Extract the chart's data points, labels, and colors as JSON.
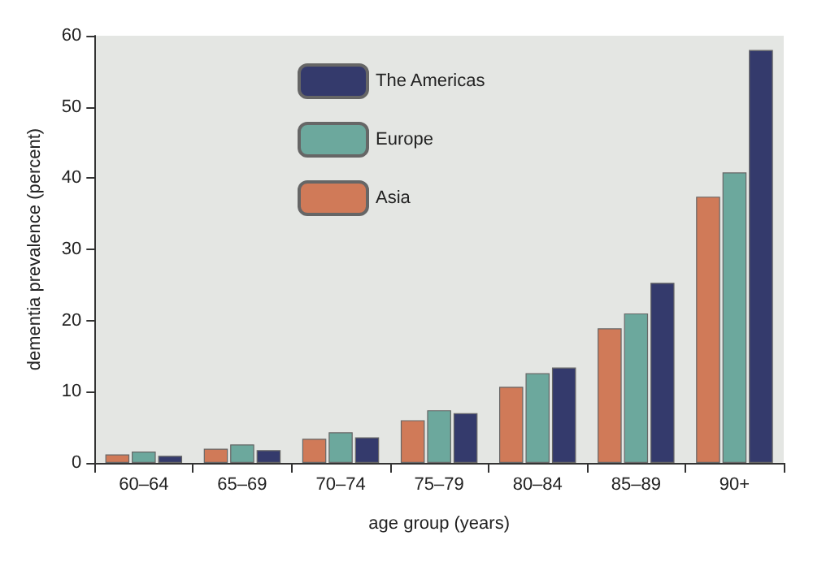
{
  "chart_data": {
    "type": "bar",
    "xlabel": "age group (years)",
    "ylabel": "dementia prevalence (percent)",
    "categories": [
      "60–64",
      "65–69",
      "70–74",
      "75–79",
      "80–84",
      "85–89",
      "90+"
    ],
    "series": [
      {
        "name": "Asia",
        "color": "#d07a58",
        "values": [
          1.2,
          2.0,
          3.4,
          6.0,
          10.7,
          18.9,
          37.4
        ]
      },
      {
        "name": "Europe",
        "color": "#6ca89d",
        "values": [
          1.6,
          2.6,
          4.3,
          7.4,
          12.6,
          21.0,
          40.8
        ]
      },
      {
        "name": "The Americas",
        "color": "#343a6c",
        "values": [
          1.0,
          1.8,
          3.6,
          7.0,
          13.4,
          25.3,
          58.0
        ]
      }
    ],
    "ylim": [
      0,
      60
    ],
    "yticks": [
      0,
      10,
      20,
      30,
      40,
      50,
      60
    ],
    "grid": false,
    "legend": "top left"
  }
}
